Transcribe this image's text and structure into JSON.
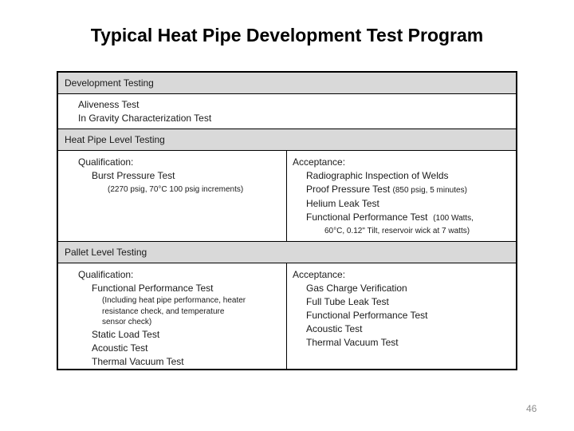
{
  "title": "Typical Heat Pipe Development Test Program",
  "page_number": "46",
  "colors": {
    "section_header_bg": "#d9d9d9",
    "table_border": "#000000",
    "page_number_gray": "#8c8c8c"
  },
  "table": {
    "development": {
      "header": "Development Testing",
      "items": [
        "Aliveness Test",
        "In Gravity Characterization Test"
      ]
    },
    "heat_pipe": {
      "header": "Heat Pipe Level Testing",
      "qualification": {
        "label": "Qualification:",
        "test": "Burst Pressure Test",
        "test_detail": "(2270 psig, 70°C 100 psig increments)"
      },
      "acceptance": {
        "label": "Acceptance:",
        "item1": "Radiographic Inspection of Welds",
        "item2": "Proof Pressure Test",
        "item2_detail": "(850 psig, 5 minutes)",
        "item3": "Helium Leak Test",
        "item4": "Functional Performance Test",
        "item4_detail": "(100 Watts,",
        "item4_detail_cont": "60°C, 0.12\" Tilt, reservoir wick at 7 watts)"
      }
    },
    "pallet": {
      "header": "Pallet Level Testing",
      "qualification": {
        "label": "Qualification:",
        "item1": "Functional Performance Test",
        "item1_detail": "(Including heat pipe performance, heater\nresistance check, and temperature\nsensor check)",
        "item2": "Static Load Test",
        "item3": "Acoustic Test",
        "item4": "Thermal Vacuum Test"
      },
      "acceptance": {
        "label": "Acceptance:",
        "items": [
          "Gas Charge Verification",
          "Full Tube Leak Test",
          "Functional Performance Test",
          "Acoustic Test",
          "Thermal Vacuum Test"
        ]
      }
    }
  }
}
